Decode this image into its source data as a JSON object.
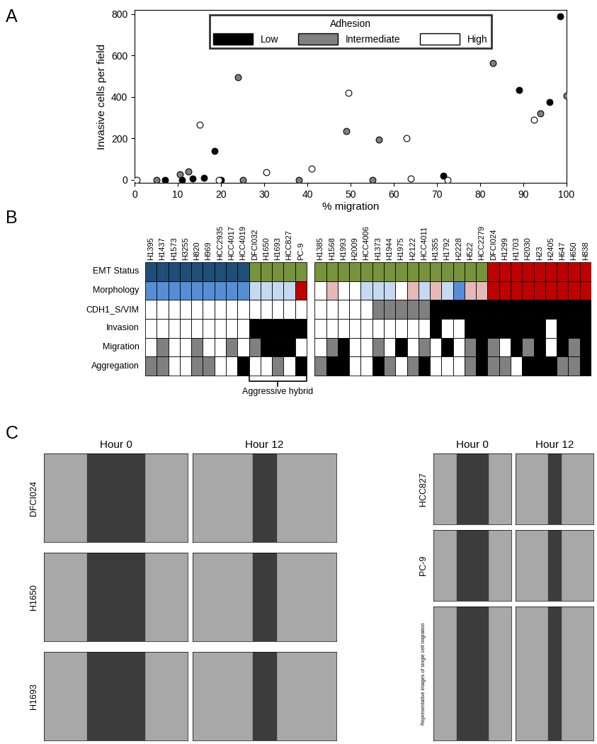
{
  "panel_labels": [
    "A",
    "B",
    "C"
  ],
  "chart_data": {
    "type": "scatter",
    "x_label": "% migration",
    "y_label": "Invasive cells per field",
    "legend_title": "Adhesion",
    "legend": "upper center",
    "xlim": [
      0,
      100
    ],
    "xticks": [
      0,
      10,
      20,
      30,
      40,
      50,
      60,
      70,
      80,
      90,
      100
    ],
    "ylim": [
      -15,
      820
    ],
    "yticks": [
      0,
      200,
      400,
      600,
      800
    ],
    "series": [
      {
        "name": "Low",
        "color": "#000000",
        "marker": "o",
        "x": [
          98.5,
          89,
          96,
          18.5,
          13.5,
          11,
          16,
          7,
          71.5,
          20
        ],
        "y": [
          790,
          435,
          375,
          140,
          5,
          0,
          10,
          0,
          20,
          0
        ]
      },
      {
        "name": "Intermediate",
        "color": "#808080",
        "marker": "o",
        "x": [
          83,
          94,
          100,
          24,
          10.5,
          12.5,
          49,
          56.5,
          55,
          5,
          25,
          38
        ],
        "y": [
          565,
          320,
          405,
          495,
          25,
          40,
          235,
          195,
          0,
          0,
          0,
          0
        ]
      },
      {
        "name": "High",
        "color": "#ffffff",
        "marker": "o",
        "x": [
          15,
          49.5,
          63,
          92.5,
          64,
          72.5,
          30.5,
          41,
          0.5,
          19.5
        ],
        "y": [
          265,
          420,
          200,
          290,
          5,
          0,
          35,
          55,
          0,
          0
        ]
      }
    ]
  },
  "panel_b": {
    "groups": [
      [
        "H1395",
        "H1437",
        "H1573",
        "H3255",
        "H820",
        "H969",
        "HCC2935",
        "HCC4017",
        "HCC4019",
        "DFCI032",
        "H1650",
        "H1693",
        "HCC827",
        "PC-9"
      ],
      [
        "H1385",
        "H1568",
        "H1993",
        "H2009",
        "HCC4006",
        "H1373",
        "H1944",
        "H1975",
        "H2122",
        "HCC4011",
        "H1355",
        "H1792",
        "H2228",
        "H522",
        "HCC2279",
        "DFCI024",
        "H1299",
        "H1703",
        "H2030",
        "H23",
        "H2405",
        "H647",
        "H650",
        "H838"
      ]
    ],
    "rows": [
      {
        "label": "EMT Status",
        "colors": [
          "#1f4e79",
          "#1f4e79",
          "#1f4e79",
          "#1f4e79",
          "#1f4e79",
          "#1f4e79",
          "#1f4e79",
          "#1f4e79",
          "#1f4e79",
          "#77933c",
          "#77933c",
          "#77933c",
          "#77933c",
          "#77933c",
          "#77933c",
          "#77933c",
          "#77933c",
          "#77933c",
          "#77933c",
          "#77933c",
          "#77933c",
          "#77933c",
          "#77933c",
          "#77933c",
          "#77933c",
          "#77933c",
          "#77933c",
          "#77933c",
          "#77933c",
          "#c00000",
          "#c00000",
          "#c00000",
          "#c00000",
          "#c00000",
          "#c00000",
          "#c00000",
          "#c00000",
          "#c00000"
        ]
      },
      {
        "label": "Morphology",
        "colors": [
          "#558ed5",
          "#558ed5",
          "#558ed5",
          "#558ed5",
          "#558ed5",
          "#558ed5",
          "#558ed5",
          "#558ed5",
          "#558ed5",
          "#c5d9f1",
          "#c5d9f1",
          "#c5d9f1",
          "#c5d9f1",
          "#c00000",
          "#ffffff",
          "#e6b9b8",
          "#ffffff",
          "#ffffff",
          "#c5d9f1",
          "#c5d9f1",
          "#c5d9f1",
          "#ffffff",
          "#e6b9b8",
          "#c5d9f1",
          "#e6b9b8",
          "#c5d9f1",
          "#558ed5",
          "#e6b9b8",
          "#e6b9b8",
          "#c00000",
          "#c00000",
          "#c00000",
          "#c00000",
          "#c00000",
          "#c00000",
          "#c00000",
          "#c00000",
          "#c00000"
        ]
      },
      {
        "label": "CDH1_S/VIM",
        "colors": [
          "#ffffff",
          "#ffffff",
          "#ffffff",
          "#ffffff",
          "#ffffff",
          "#ffffff",
          "#ffffff",
          "#ffffff",
          "#ffffff",
          "#ffffff",
          "#ffffff",
          "#ffffff",
          "#ffffff",
          "#ffffff",
          "#ffffff",
          "#ffffff",
          "#ffffff",
          "#ffffff",
          "#ffffff",
          "#808080",
          "#808080",
          "#808080",
          "#808080",
          "#808080",
          "#000000",
          "#000000",
          "#000000",
          "#000000",
          "#000000",
          "#000000",
          "#000000",
          "#000000",
          "#000000",
          "#000000",
          "#000000",
          "#000000",
          "#000000",
          "#000000"
        ]
      },
      {
        "label": "Invasion",
        "colors": [
          "#ffffff",
          "#ffffff",
          "#ffffff",
          "#ffffff",
          "#ffffff",
          "#ffffff",
          "#ffffff",
          "#ffffff",
          "#ffffff",
          "#000000",
          "#000000",
          "#000000",
          "#000000",
          "#000000",
          "#ffffff",
          "#ffffff",
          "#ffffff",
          "#ffffff",
          "#ffffff",
          "#ffffff",
          "#ffffff",
          "#ffffff",
          "#ffffff",
          "#ffffff",
          "#000000",
          "#ffffff",
          "#ffffff",
          "#000000",
          "#000000",
          "#000000",
          "#000000",
          "#000000",
          "#000000",
          "#000000",
          "#ffffff",
          "#000000",
          "#000000",
          "#000000"
        ]
      },
      {
        "label": "Migration",
        "colors": [
          "#ffffff",
          "#808080",
          "#ffffff",
          "#ffffff",
          "#808080",
          "#ffffff",
          "#ffffff",
          "#808080",
          "#ffffff",
          "#808080",
          "#000000",
          "#000000",
          "#000000",
          "#ffffff",
          "#ffffff",
          "#808080",
          "#000000",
          "#ffffff",
          "#ffffff",
          "#808080",
          "#ffffff",
          "#000000",
          "#ffffff",
          "#808080",
          "#ffffff",
          "#000000",
          "#ffffff",
          "#808080",
          "#000000",
          "#808080",
          "#ffffff",
          "#000000",
          "#808080",
          "#000000",
          "#ffffff",
          "#000000",
          "#808080",
          "#000000"
        ]
      },
      {
        "label": "Aggregation",
        "colors": [
          "#808080",
          "#808080",
          "#ffffff",
          "#ffffff",
          "#808080",
          "#808080",
          "#ffffff",
          "#ffffff",
          "#000000",
          "#ffffff",
          "#ffffff",
          "#808080",
          "#ffffff",
          "#000000",
          "#808080",
          "#000000",
          "#000000",
          "#ffffff",
          "#ffffff",
          "#000000",
          "#808080",
          "#ffffff",
          "#808080",
          "#000000",
          "#ffffff",
          "#ffffff",
          "#ffffff",
          "#808080",
          "#000000",
          "#808080",
          "#808080",
          "#ffffff",
          "#000000",
          "#000000",
          "#000000",
          "#808080",
          "#808080",
          "#000000"
        ]
      }
    ],
    "bracket": {
      "text": "Aggressive hybrid",
      "from": "DFCI032",
      "to": "PC-9"
    }
  },
  "panel_c": {
    "columns": [
      "Hour 0",
      "Hour 12"
    ],
    "left_rows": [
      "DFCI024",
      "H1650",
      "H1693"
    ],
    "right_rows": [
      "HCC827",
      "PC-9",
      "Representative images of single cell migration"
    ]
  }
}
